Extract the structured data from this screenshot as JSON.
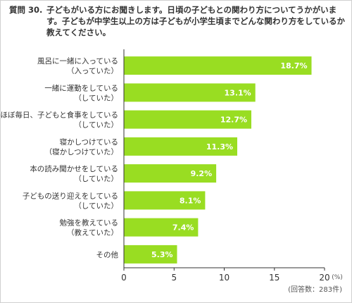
{
  "question": {
    "number": "質問 30.",
    "text": "子どもがいる方にお聞きします。日頃の子どもとの関わり方についてうかがいます。子どもが中学生以上の方は子どもが小学生頃までどんな関わり方をしているか教えてください。"
  },
  "chart_data": {
    "type": "bar",
    "orientation": "horizontal",
    "categories": [
      [
        "風呂に一緒に入っている",
        "（入っていた）"
      ],
      [
        "一緒に運動をしている",
        "（していた）"
      ],
      [
        "ほぼ毎日、子どもと食事をしている",
        "（していた）"
      ],
      [
        "寝かしつけている",
        "（寝かしつけていた）"
      ],
      [
        "本の読み聞かせをしている",
        "（していた）"
      ],
      [
        "子どもの送り迎えをしている",
        "（していた）"
      ],
      [
        "勉強を教えている",
        "（教えていた）"
      ],
      [
        "その他"
      ]
    ],
    "values": [
      18.7,
      13.1,
      12.7,
      11.3,
      9.2,
      8.1,
      7.4,
      5.3
    ],
    "value_labels": [
      "18.7%",
      "13.1%",
      "12.7%",
      "11.3%",
      "9.2%",
      "8.1%",
      "7.4%",
      "5.3%"
    ],
    "xlim": [
      0,
      20
    ],
    "xticks": [
      "0",
      "5",
      "10",
      "15",
      "20"
    ],
    "xtick_values": [
      0,
      5,
      10,
      15,
      20
    ],
    "unit": "(%)",
    "note": "(回答数：283件)",
    "bar_color": "#99dd22",
    "grid": false
  }
}
